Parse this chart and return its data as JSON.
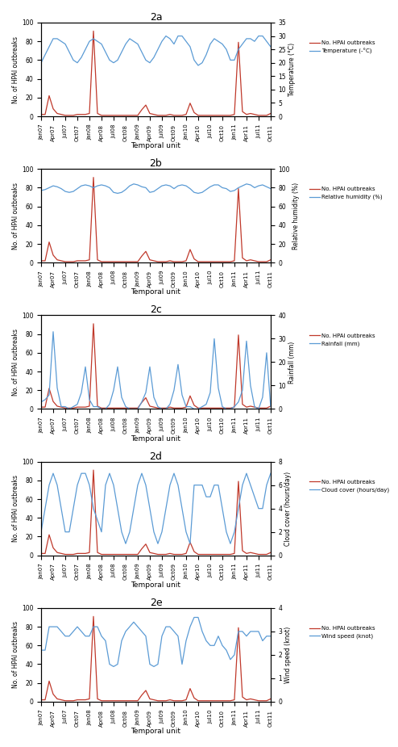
{
  "x_labels": [
    "Jan07",
    "Apr07",
    "Jul07",
    "Oct07",
    "Jan08",
    "Apr08",
    "Jul08",
    "Oct08",
    "Jan09",
    "Apr09",
    "Jul09",
    "Oct09",
    "Jan10",
    "Apr10",
    "Jul10",
    "Oct10",
    "Jan11",
    "Apr11",
    "Jul11",
    "Oct11"
  ],
  "color_red": "#c0392b",
  "color_blue": "#5b9bd5",
  "panel_titles": [
    "2a",
    "2b",
    "2c",
    "2d",
    "2e"
  ],
  "ylabel_left": "No. of HPAI outbreaks",
  "ylabel_right_a": "Temperature (°C)",
  "ylabel_right_b": "Relative humidity (%)",
  "ylabel_right_c": "Rainfall (mm)",
  "ylabel_right_d": "Cloud cover (hours/day)",
  "ylabel_right_e": "Wind speed (knot)",
  "xlabel": "Temporal unit",
  "legend_hpai": "No. HPAI outbreaks",
  "legend_temp": "Temperature (-°C)",
  "legend_hum": "Relative humidity (%)",
  "legend_rain": "Rainfall (mm)",
  "legend_cloud": "Cloud cover (hours/day)",
  "legend_wind": "Wind speed (knot)",
  "ylim_hpai": [
    0,
    100
  ],
  "ylim_temp": [
    0,
    35
  ],
  "ylim_hum": [
    0,
    100
  ],
  "ylim_rain": [
    0,
    40
  ],
  "ylim_cloud": [
    0,
    8
  ],
  "ylim_wind": [
    0,
    4
  ],
  "hpai_monthly": [
    2,
    2,
    22,
    8,
    3,
    2,
    1,
    1,
    1,
    2,
    2,
    2,
    3,
    91,
    3,
    1,
    1,
    1,
    1,
    1,
    1,
    1,
    1,
    1,
    1,
    7,
    12,
    3,
    2,
    1,
    1,
    1,
    2,
    1,
    1,
    1,
    2,
    14,
    4,
    1,
    1,
    1,
    1,
    1,
    1,
    1,
    1,
    1,
    2,
    79,
    5,
    2,
    3,
    2,
    1,
    1,
    1,
    3
  ],
  "temp_monthly": [
    20,
    23,
    26,
    29,
    29,
    28,
    27,
    24,
    21,
    20,
    22,
    25,
    28,
    29,
    28,
    27,
    24,
    21,
    20,
    21,
    24,
    27,
    29,
    28,
    27,
    24,
    21,
    20,
    22,
    25,
    28,
    30,
    29,
    27,
    30,
    30,
    28,
    26,
    21,
    19,
    20,
    23,
    27,
    29,
    28,
    27,
    25,
    21,
    21,
    25,
    27,
    29,
    29,
    28,
    30,
    30,
    28,
    26
  ],
  "hum_monthly": [
    77,
    78,
    80,
    82,
    81,
    79,
    76,
    75,
    76,
    79,
    82,
    83,
    82,
    80,
    82,
    83,
    82,
    80,
    75,
    74,
    75,
    78,
    82,
    84,
    83,
    81,
    80,
    75,
    76,
    79,
    82,
    83,
    82,
    79,
    82,
    83,
    82,
    79,
    75,
    74,
    75,
    78,
    81,
    83,
    83,
    80,
    79,
    76,
    77,
    80,
    82,
    84,
    83,
    80,
    82,
    83,
    81,
    79
  ],
  "rain_monthly": [
    3,
    4,
    6,
    33,
    9,
    1,
    1,
    0,
    1,
    2,
    7,
    18,
    4,
    1,
    1,
    0,
    0,
    2,
    8,
    18,
    5,
    1,
    0,
    0,
    0,
    3,
    7,
    18,
    5,
    1,
    0,
    0,
    2,
    8,
    19,
    6,
    1,
    1,
    0,
    0,
    1,
    2,
    7,
    30,
    9,
    1,
    0,
    0,
    1,
    3,
    8,
    29,
    10,
    1,
    0,
    5,
    24,
    1
  ],
  "cloud_monthly": [
    2,
    4,
    6,
    7,
    6,
    4,
    2,
    2,
    4,
    6,
    7,
    7,
    6,
    4,
    3,
    2,
    6,
    7,
    6,
    4,
    2,
    1,
    2,
    4,
    6,
    7,
    6,
    4,
    2,
    1,
    2,
    4,
    6,
    7,
    6,
    4,
    2,
    1,
    6,
    6,
    6,
    5,
    5,
    6,
    6,
    4,
    2,
    1,
    2,
    4,
    6,
    7,
    6,
    5,
    4,
    4,
    6,
    7
  ],
  "wind_monthly": [
    2.2,
    2.2,
    3.2,
    3.2,
    3.2,
    3.0,
    2.8,
    2.8,
    3.0,
    3.2,
    3.0,
    2.8,
    2.8,
    3.2,
    3.2,
    2.8,
    2.6,
    1.6,
    1.5,
    1.6,
    2.6,
    3.0,
    3.2,
    3.4,
    3.2,
    3.0,
    2.8,
    1.6,
    1.5,
    1.6,
    2.8,
    3.2,
    3.2,
    3.0,
    2.8,
    1.6,
    2.6,
    3.2,
    3.6,
    3.6,
    3.0,
    2.6,
    2.4,
    2.4,
    2.8,
    2.4,
    2.2,
    1.8,
    2.0,
    3.0,
    3.0,
    2.8,
    3.0,
    3.0,
    3.0,
    2.6,
    2.8,
    2.8
  ]
}
